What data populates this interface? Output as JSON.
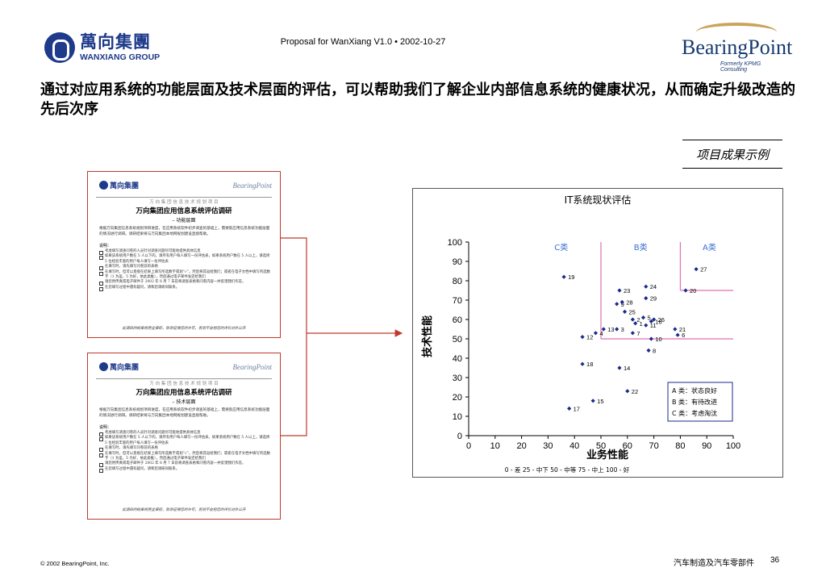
{
  "header": {
    "client_logo_cn": "萬向集團",
    "client_logo_en": "WANXIANG GROUP",
    "proposal": "Proposal for WanXiang V1.0  •  2002-10-27",
    "consultant_logo": "BearingPoint",
    "consultant_sub": "Formerly KPMG Consulting"
  },
  "headline": "通过对应用系统的功能层面及技术层面的评估，可以帮助我们了解企业内部信息系统的健康状况，从而确定升级改造的先后次序",
  "result_label": "项目成果示例",
  "surveys": [
    {
      "logo_cn": "萬向集團",
      "logo_en": "BearingPoint",
      "supertitle": "万 向 集 团 信 息 技 术 规 划 项 目",
      "title": "万向集团应用信息系统评估调研",
      "subtitle": "– 功能层面",
      "intro": "根据万向集团信息系统规划项目进度，在应用系统软件初步调查的基础上，需要就应用信息系统功能层面的情况进行调研。调研结果将与万向集团本地网规划建设直接帮助。",
      "notes_label": "说明：",
      "items": [
        "考虑填写调查问卷的人员针对调查问题尽可能地提供具体信息",
        "如果该系统用户数在 5 人以下的，请所有用户每人填写一份评估表，如果系统用户数在 5 人以上，请选择 5 位经验丰富的用户每人填写一份评估表",
        "在填写时，请先填写问卷前的表格",
        "在填写时，但可以直接在结果上填写所选数字或划“√”，然后将其返给我们；或者在电子文档中填写所选数字（1 为差，5 为好，依此类推），然后通过电子邮件发还给我们",
        "请您用传真或电子邮件于 2002 年 8 月 7 日前将调查表格和问卷内容一并反馈我们作答。",
        "在您填写过程中遇有疑问，请和您调研同联系。"
      ],
      "footer": "此调研的结果将完全保密，除非征得您的许可，否则不会把您的评价对外公开"
    },
    {
      "logo_cn": "萬向集團",
      "logo_en": "BearingPoint",
      "supertitle": "万 向 集 团 信 息 技 术 规 划 项 目",
      "title": "万向集团应用信息系统评估调研",
      "subtitle": "– 技术层面",
      "intro": "根据万向集团信息系统规划项目进度，在应用系统软件初步调查的基础上，需要就应用信息系统功能层面的情况进行调研。调研结果将与万向集团本地网规划建设直接帮助。",
      "notes_label": "说明：",
      "items": [
        "考虑填写调查问卷的人员针对调查问题尽可能地提供具体信息",
        "如果该系统用户数在 5 人以下的，请所有用户每人填写一份评估表，如果系统用户数在 5 人以上，请选择 5 位经验丰富的用户每人填写一份评估表",
        "在填写时，请先填写问卷前的表格",
        "在填写时，但可以直接在结果上填写所选数字或划“√”，然后将其返给我们；或者在电子文档中填写所选数字（1 为差，5 为好，依此类推），然后通过电子邮件发还给我们",
        "请您用传真或电子邮件于 2002 年 8 月 7 日前将调查表格和问卷内容一并反馈我们作答。",
        "在您填写过程中遇有疑问，请和您调研同联系。"
      ],
      "footer": "此调研的结果将完全保密，除非征得您的许可，否则不会把您的评价对外公开"
    }
  ],
  "chart_data": {
    "type": "scatter",
    "title": "IT系统现状评估",
    "xlabel": "业务性能",
    "ylabel": "技术性能",
    "xlim": [
      0,
      100
    ],
    "ylim": [
      0,
      100
    ],
    "xticks": [
      0,
      10,
      20,
      30,
      40,
      50,
      60,
      70,
      80,
      90,
      100
    ],
    "yticks": [
      0,
      10,
      20,
      30,
      40,
      50,
      60,
      70,
      80,
      90,
      100
    ],
    "scale_note": "0 - 差   25 - 中下   50 - 中等   75 - 中上   100 - 好",
    "class_labels": [
      "C类",
      "B类",
      "A类"
    ],
    "legend": [
      "A 类：状态良好",
      "B 类：有待改进",
      "C 类：考虑淘汰"
    ],
    "points": [
      {
        "label": "1",
        "x": 63,
        "y": 58
      },
      {
        "label": "2",
        "x": 62,
        "y": 60
      },
      {
        "label": "3",
        "x": 56,
        "y": 55
      },
      {
        "label": "4",
        "x": 48,
        "y": 53
      },
      {
        "label": "5",
        "x": 66,
        "y": 61
      },
      {
        "label": "6",
        "x": 79,
        "y": 52
      },
      {
        "label": "7",
        "x": 62,
        "y": 53
      },
      {
        "label": "8",
        "x": 68,
        "y": 44
      },
      {
        "label": "9",
        "x": 56,
        "y": 68
      },
      {
        "label": "10",
        "x": 69,
        "y": 50
      },
      {
        "label": "11",
        "x": 67,
        "y": 57
      },
      {
        "label": "12",
        "x": 43,
        "y": 51
      },
      {
        "label": "13",
        "x": 51,
        "y": 55
      },
      {
        "label": "14",
        "x": 57,
        "y": 35
      },
      {
        "label": "15",
        "x": 47,
        "y": 18
      },
      {
        "label": "16",
        "x": 69,
        "y": 59
      },
      {
        "label": "17",
        "x": 38,
        "y": 14
      },
      {
        "label": "18",
        "x": 43,
        "y": 37
      },
      {
        "label": "19",
        "x": 36,
        "y": 82
      },
      {
        "label": "20",
        "x": 82,
        "y": 75
      },
      {
        "label": "21",
        "x": 78,
        "y": 55
      },
      {
        "label": "22",
        "x": 60,
        "y": 23
      },
      {
        "label": "23",
        "x": 57,
        "y": 75
      },
      {
        "label": "24",
        "x": 67,
        "y": 77
      },
      {
        "label": "25",
        "x": 59,
        "y": 64
      },
      {
        "label": "26",
        "x": 70,
        "y": 60
      },
      {
        "label": "27",
        "x": 86,
        "y": 86
      },
      {
        "label": "28",
        "x": 58,
        "y": 69
      },
      {
        "label": "29",
        "x": 67,
        "y": 71
      }
    ],
    "thresholds": {
      "x": 50,
      "x_a": 80,
      "y": 50,
      "y_a": 75
    },
    "colors": {
      "points": "#1a2a8c",
      "threshold": "#e070b0",
      "legend_border": "#1a2a8c"
    }
  },
  "footer": {
    "copyright": "© 2002 BearingPoint, Inc.",
    "section": "汽车制造及汽车零部件",
    "page": "36"
  }
}
